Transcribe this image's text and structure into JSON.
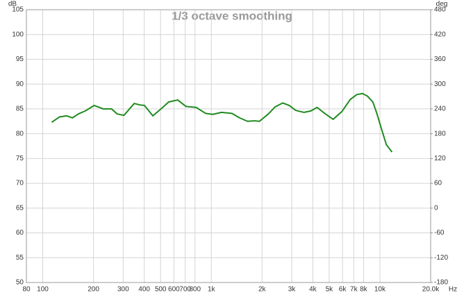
{
  "chart_data": {
    "type": "line",
    "title": "1/3 octave smoothing",
    "xlabel": "Hz",
    "ylabel": "dB",
    "y2label": "deg",
    "xscale": "log",
    "grid": true,
    "xlim": [
      80,
      20000
    ],
    "xticks": [
      80,
      100,
      200,
      300,
      400,
      500,
      600,
      700,
      800,
      {
        "value": 1000,
        "label": "1k"
      },
      {
        "value": 2000,
        "label": "2k"
      },
      {
        "value": 3000,
        "label": "3k"
      },
      {
        "value": 4000,
        "label": "4k"
      },
      {
        "value": 5000,
        "label": "5k"
      },
      {
        "value": 6000,
        "label": "6k"
      },
      {
        "value": 7000,
        "label": "7k"
      },
      {
        "value": 8000,
        "label": "8k"
      },
      {
        "value": 10000,
        "label": "10k"
      },
      {
        "value": 20000,
        "label": "20.0k"
      }
    ],
    "ylim": [
      50,
      105
    ],
    "yticks": [
      50,
      55,
      60,
      65,
      70,
      75,
      80,
      85,
      90,
      95,
      100,
      105
    ],
    "y2lim": [
      -180,
      480
    ],
    "y2ticks": [
      -180,
      -120,
      -60,
      0,
      60,
      120,
      180,
      240,
      300,
      360,
      420,
      480
    ],
    "x": [
      113,
      126,
      139,
      150,
      163,
      179,
      202,
      229,
      256,
      276,
      303,
      349,
      377,
      401,
      450,
      503,
      559,
      632,
      707,
      813,
      925,
      1020,
      1150,
      1325,
      1470,
      1640,
      1800,
      1930,
      2180,
      2390,
      2650,
      2900,
      3170,
      3550,
      3900,
      4240,
      4700,
      5280,
      5960,
      6670,
      7300,
      7880,
      8420,
      9080,
      9590,
      10230,
      10920,
      11800
    ],
    "series": [
      {
        "color": "#1e8a1e",
        "values": [
          82.3,
          83.4,
          83.6,
          83.2,
          84.0,
          84.6,
          85.7,
          85.0,
          85.0,
          84.0,
          83.7,
          86.1,
          85.8,
          85.7,
          83.6,
          85.0,
          86.4,
          86.8,
          85.5,
          85.3,
          84.1,
          83.9,
          84.3,
          84.1,
          83.2,
          82.5,
          82.6,
          82.5,
          84.0,
          85.4,
          86.2,
          85.7,
          84.7,
          84.3,
          84.6,
          85.3,
          84.1,
          82.9,
          84.5,
          86.9,
          87.9,
          88.1,
          87.6,
          86.4,
          84.1,
          80.9,
          77.8,
          76.3
        ]
      }
    ]
  }
}
